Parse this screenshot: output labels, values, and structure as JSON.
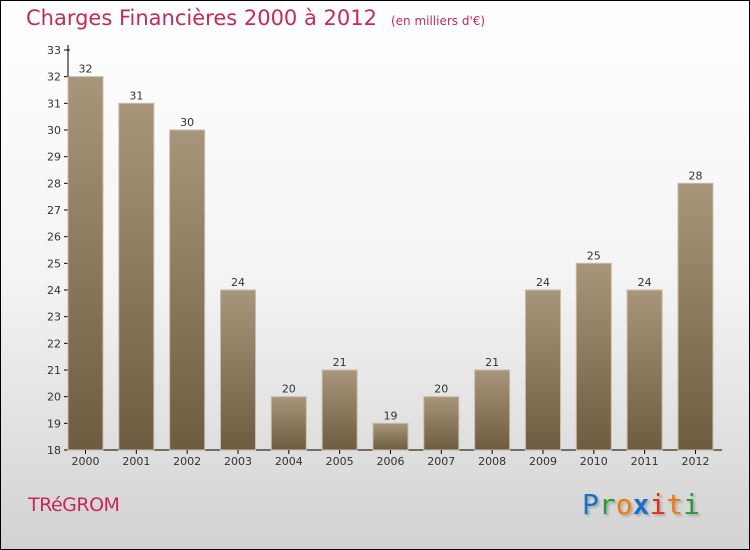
{
  "chart_data": {
    "type": "bar",
    "title": "Charges Financières 2000 à 2012",
    "subtitle": "(en milliers d'€)",
    "categories": [
      "2000",
      "2001",
      "2002",
      "2003",
      "2004",
      "2005",
      "2006",
      "2007",
      "2008",
      "2009",
      "2010",
      "2011",
      "2012"
    ],
    "values": [
      32,
      31,
      30,
      24,
      20,
      21,
      19,
      20,
      21,
      24,
      25,
      24,
      28
    ],
    "ylim": [
      18,
      33
    ],
    "yticks": [
      18,
      19,
      20,
      21,
      22,
      23,
      24,
      25,
      26,
      27,
      28,
      29,
      30,
      31,
      32,
      33
    ],
    "xlabel": "",
    "ylabel": "",
    "grid": false,
    "bar_color_top": "#a8967a",
    "bar_color_bottom": "#6e5c40"
  },
  "footer": {
    "town": "TRéGROM",
    "logo": "Proxiti"
  },
  "colors": {
    "title": "#c8285a"
  }
}
